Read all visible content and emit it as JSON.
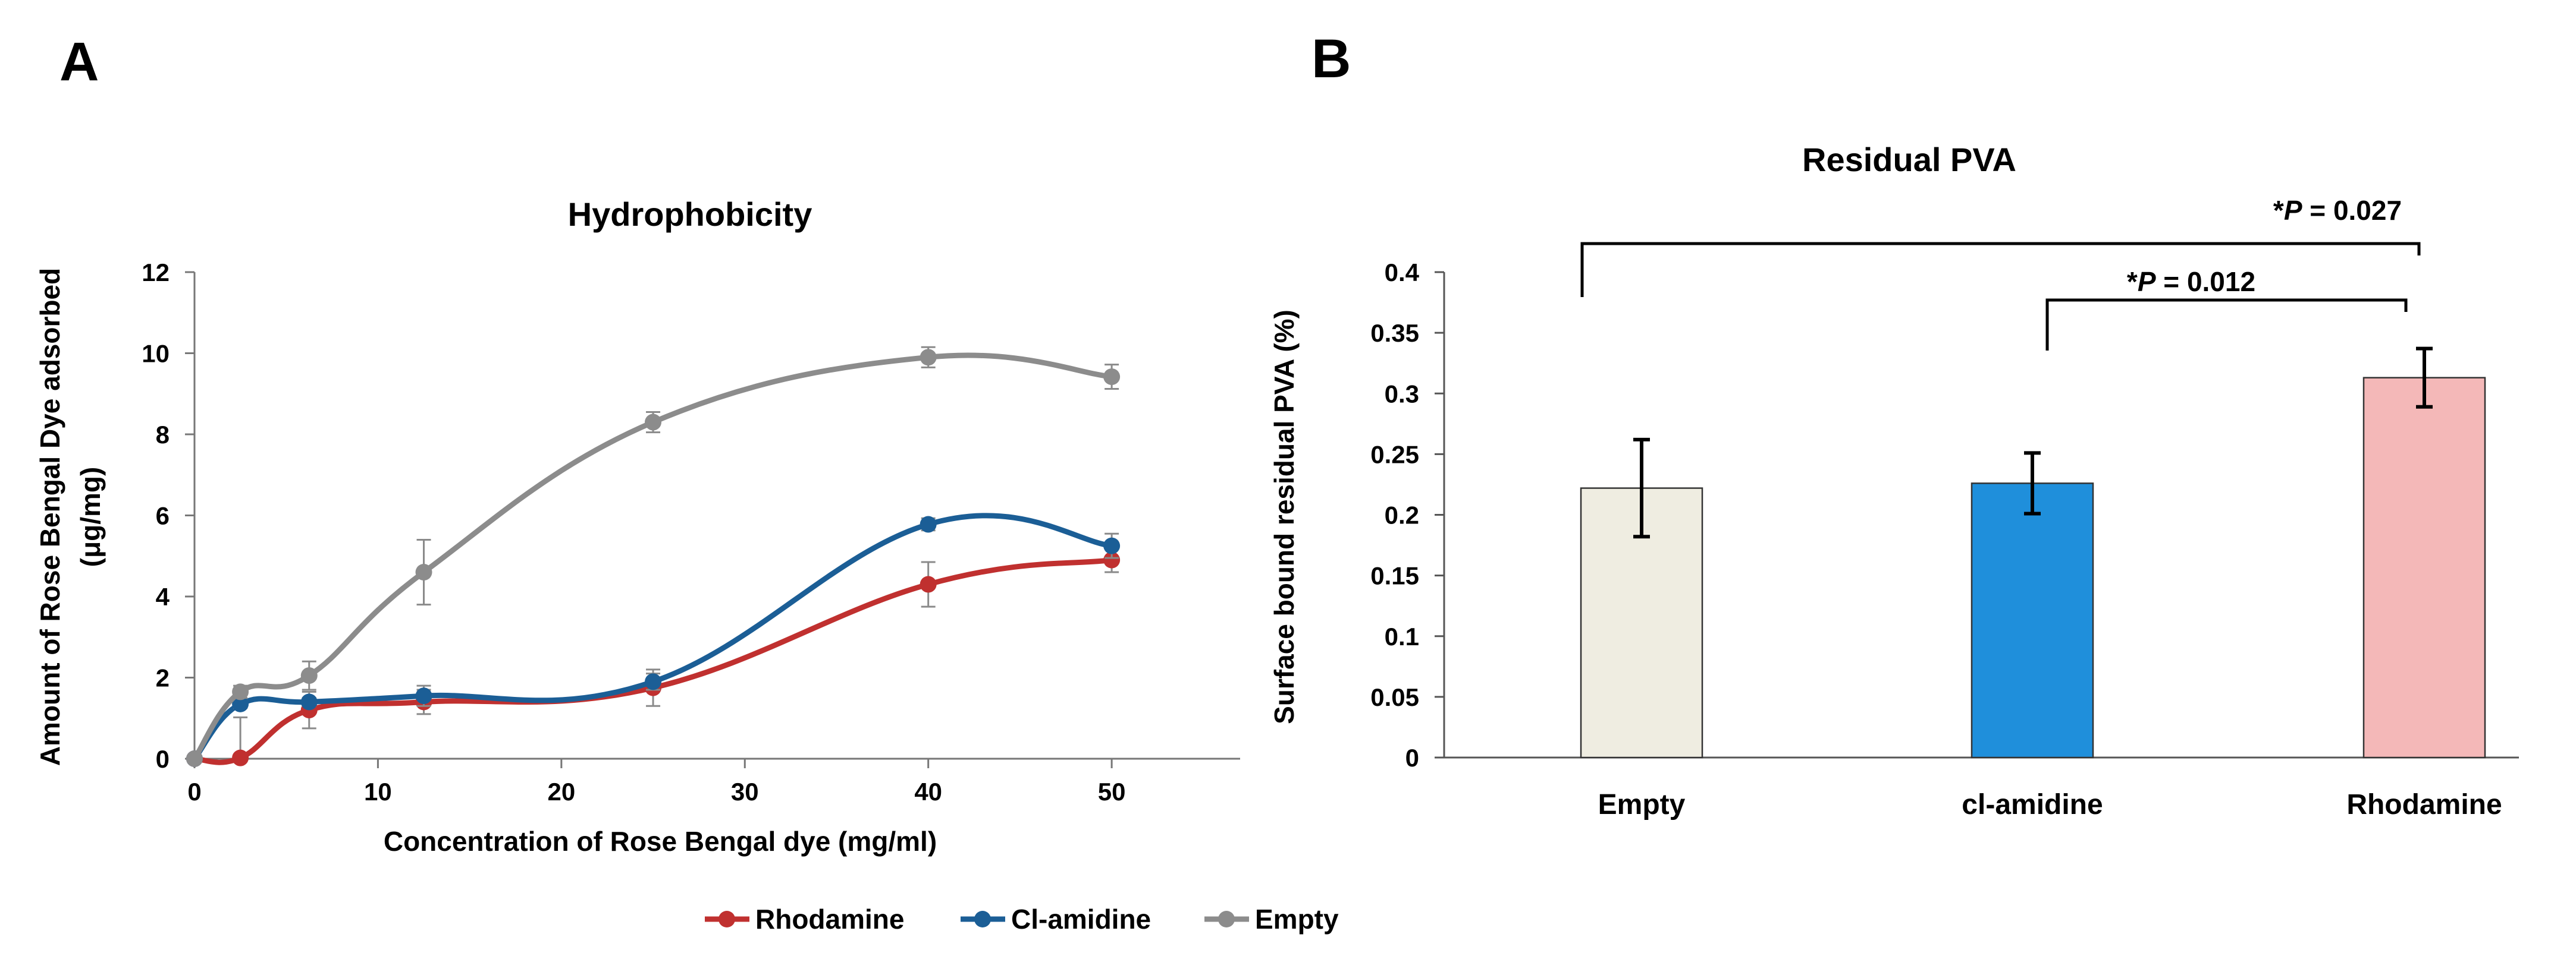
{
  "panels": {
    "a_label": "A",
    "b_label": "B"
  },
  "chart_data": [
    {
      "type": "line",
      "title": "Hydrophobicity",
      "xlabel": "Concentration of Rose Bengal dye (mg/ml)",
      "ylabel_line1": "Amount of Rose Bengal Dye adsorbed",
      "ylabel_line2": "(μg/mg)",
      "xlim": [
        0,
        57
      ],
      "ylim": [
        0,
        12
      ],
      "xticks": [
        0,
        10,
        20,
        30,
        40,
        50
      ],
      "yticks": [
        0,
        2,
        4,
        6,
        8,
        10,
        12
      ],
      "x": [
        0,
        2.5,
        6.25,
        12.5,
        25,
        40,
        50
      ],
      "series": [
        {
          "name": "Rhodamine",
          "color": "#C0302F",
          "values": [
            0,
            0.02,
            1.2,
            1.4,
            1.75,
            4.3,
            4.9
          ],
          "errors": [
            0,
            1.0,
            0.45,
            0.3,
            0.45,
            0.55,
            0.3
          ]
        },
        {
          "name": "Cl-amidine",
          "color": "#1B5E96",
          "values": [
            0,
            1.35,
            1.4,
            1.55,
            1.9,
            5.78,
            5.25
          ],
          "errors": [
            0,
            0.1,
            0.1,
            0.25,
            0.2,
            0.15,
            0.3
          ]
        },
        {
          "name": "Empty",
          "color": "#8C8C8C",
          "values": [
            0,
            1.65,
            2.05,
            4.6,
            8.3,
            9.9,
            9.42
          ],
          "errors": [
            0,
            0.15,
            0.35,
            0.8,
            0.25,
            0.25,
            0.3
          ]
        }
      ],
      "legend_position": "bottom"
    },
    {
      "type": "bar",
      "title": "Residual PVA",
      "xlabel": "",
      "ylabel": "Surface bound residual PVA (%)",
      "ylim": [
        0,
        0.4
      ],
      "yticks": [
        0,
        0.05,
        0.1,
        0.15,
        0.2,
        0.25,
        0.3,
        0.35,
        0.4
      ],
      "ytick_labels": [
        "0",
        "0.05",
        "0.1",
        "0.15",
        "0.2",
        "0.25",
        "0.3",
        "0.35",
        "0.4"
      ],
      "categories": [
        "Empty",
        "cl-amidine",
        "Rhodamine"
      ],
      "values": [
        0.222,
        0.226,
        0.313
      ],
      "errors": [
        0.04,
        0.025,
        0.024
      ],
      "colors": [
        "#EFEDE1",
        "#1F8FDB",
        "#F4B8B8"
      ],
      "annotations": [
        {
          "from": 0,
          "to": 2,
          "prefix": "*",
          "p": "P",
          "text": " = 0.027"
        },
        {
          "from": 1,
          "to": 2,
          "prefix": "*",
          "p": "P",
          "text": " = 0.012"
        }
      ]
    }
  ]
}
